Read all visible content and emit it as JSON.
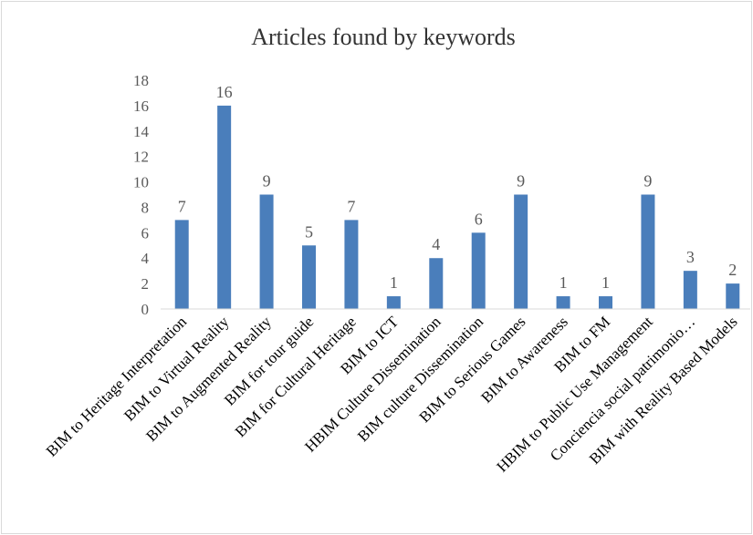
{
  "chart_data": {
    "type": "bar",
    "title": "Articles found by keywords",
    "xlabel": "",
    "ylabel": "",
    "ylim": [
      0,
      18
    ],
    "yticks": [
      0,
      2,
      4,
      6,
      8,
      10,
      12,
      14,
      16,
      18
    ],
    "grid": false,
    "legend": "none",
    "bar_color": "#4a7ebb",
    "categories": [
      "BIM to Heritage Interpretation",
      "BIM to Virtual Reality",
      "BIM to Augmented Reality",
      "BIM for tour guide",
      "BIM for Cultural Heritage",
      "BIM to ICT",
      "HBIM Culture Dissemination",
      "BIM culture Dissemination",
      "BIM to Serious Games",
      "BIM to Awareness",
      "BIM to FM",
      "HBIM to Public  Use Management",
      "Conciencia social patrimonio…",
      "BIM with Reality Based Models"
    ],
    "values": [
      7,
      16,
      9,
      5,
      7,
      1,
      4,
      6,
      9,
      1,
      1,
      9,
      3,
      2
    ]
  }
}
